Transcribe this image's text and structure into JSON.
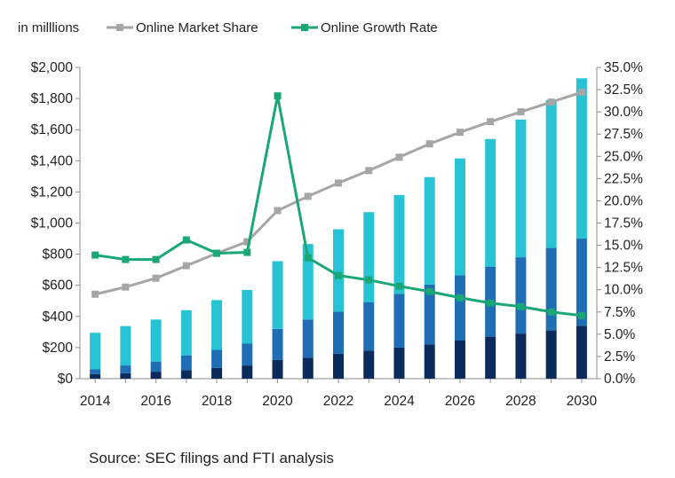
{
  "chart_data": {
    "type": "bar",
    "unit_note": "in milllions",
    "categories": [
      "2014",
      "2015",
      "2016",
      "2017",
      "2018",
      "2019",
      "2020",
      "2021",
      "2022",
      "2023",
      "2024",
      "2025",
      "2026",
      "2027",
      "2028",
      "2029",
      "2030"
    ],
    "x_tick_labels": [
      "2014",
      "2016",
      "2018",
      "2020",
      "2022",
      "2024",
      "2026",
      "2028",
      "2030"
    ],
    "stacked_series": [
      {
        "name": "",
        "color": "#0b2c5a",
        "values": [
          30,
          35,
          45,
          55,
          70,
          85,
          120,
          135,
          160,
          180,
          200,
          220,
          245,
          270,
          290,
          310,
          340
        ]
      },
      {
        "name": "",
        "color": "#1f6db5",
        "values": [
          30,
          50,
          65,
          95,
          115,
          140,
          200,
          245,
          270,
          310,
          345,
          385,
          420,
          450,
          490,
          530,
          560
        ]
      },
      {
        "name": "",
        "color": "#27c3d4",
        "values": [
          235,
          253,
          270,
          290,
          320,
          345,
          435,
          485,
          530,
          580,
          635,
          690,
          750,
          820,
          885,
          950,
          1030
        ]
      }
    ],
    "line_series": [
      {
        "name": "Online Market Share",
        "color": "#a6a6a6",
        "marker": "square",
        "values": [
          9.5,
          10.3,
          11.3,
          12.7,
          14.1,
          15.4,
          18.9,
          20.5,
          22.0,
          23.4,
          24.9,
          26.4,
          27.7,
          28.9,
          30.0,
          31.1,
          32.2
        ]
      },
      {
        "name": "Online Growth Rate",
        "color": "#1aa774",
        "marker": "square",
        "values": [
          13.9,
          13.4,
          13.4,
          15.6,
          14.1,
          14.2,
          31.8,
          13.6,
          11.6,
          11.1,
          10.4,
          9.8,
          9.1,
          8.5,
          8.1,
          7.5,
          7.1
        ]
      }
    ],
    "y_left": {
      "min": 0,
      "max": 2000,
      "step": 200,
      "tick_labels": [
        "$0",
        "$200",
        "$400",
        "$600",
        "$800",
        "$1,000",
        "$1,200",
        "$1,400",
        "$1,600",
        "$1,800",
        "$2,000"
      ]
    },
    "y_right": {
      "min": 0,
      "max": 35,
      "step": 2.5,
      "tick_labels": [
        "0.0%",
        "2.5%",
        "5.0%",
        "7.5%",
        "10.0%",
        "12.5%",
        "15.0%",
        "17.5%",
        "20.0%",
        "22.5%",
        "25.0%",
        "27.5%",
        "30.0%",
        "32.5%",
        "35.0%"
      ]
    },
    "grid": false,
    "legend_placement": "top-left",
    "source": "Source: SEC filings and FTI analysis"
  }
}
